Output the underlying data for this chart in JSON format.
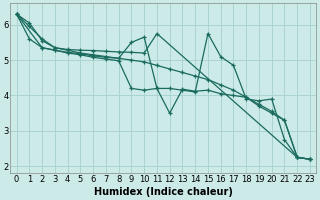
{
  "xlabel": "Humidex (Indice chaleur)",
  "xlim": [
    -0.5,
    23.5
  ],
  "ylim": [
    1.8,
    6.6
  ],
  "background_color": "#cceae8",
  "grid_color": "#aad4d0",
  "line_color": "#1a6b5e",
  "series": [
    {
      "x": [
        0,
        1,
        2,
        3,
        4,
        5,
        6,
        7,
        8,
        9,
        10,
        11,
        22,
        23
      ],
      "y": [
        6.3,
        5.95,
        5.6,
        5.35,
        5.3,
        5.28,
        5.27,
        5.25,
        5.23,
        5.22,
        5.2,
        5.75,
        2.25,
        2.2
      ]
    },
    {
      "x": [
        0,
        1,
        2,
        3,
        4,
        5,
        6,
        7,
        8,
        9,
        10,
        11,
        12,
        13,
        14,
        15,
        16,
        17,
        18,
        19,
        20,
        21,
        22,
        23
      ],
      "y": [
        6.3,
        6.05,
        5.55,
        5.35,
        5.28,
        5.2,
        5.15,
        5.1,
        5.05,
        5.0,
        4.95,
        4.85,
        4.75,
        4.65,
        4.55,
        4.45,
        4.3,
        4.15,
        3.95,
        3.75,
        3.55,
        3.3,
        2.25,
        2.2
      ]
    },
    {
      "x": [
        0,
        1,
        2,
        3,
        4,
        5,
        6,
        7,
        8,
        9,
        10,
        11,
        12,
        13,
        14,
        15,
        16,
        17,
        18,
        19,
        20,
        21,
        22,
        23
      ],
      "y": [
        6.3,
        5.6,
        5.35,
        5.28,
        5.22,
        5.18,
        5.12,
        5.08,
        5.05,
        5.5,
        5.65,
        4.2,
        4.2,
        4.15,
        4.1,
        5.75,
        5.1,
        4.85,
        3.9,
        3.85,
        3.9,
        2.75,
        2.25,
        2.2
      ]
    },
    {
      "x": [
        0,
        2,
        3,
        4,
        5,
        6,
        7,
        8,
        9,
        10,
        11,
        12,
        13,
        14,
        15,
        16,
        17,
        18,
        19,
        20,
        21,
        22,
        23
      ],
      "y": [
        6.3,
        5.35,
        5.28,
        5.2,
        5.15,
        5.08,
        5.03,
        4.98,
        4.2,
        4.15,
        4.2,
        3.5,
        4.18,
        4.12,
        4.15,
        4.05,
        4.0,
        3.95,
        3.7,
        3.5,
        3.3,
        2.25,
        2.2
      ]
    }
  ],
  "yticks": [
    2,
    3,
    4,
    5,
    6
  ],
  "xticks": [
    0,
    1,
    2,
    3,
    4,
    5,
    6,
    7,
    8,
    9,
    10,
    11,
    12,
    13,
    14,
    15,
    16,
    17,
    18,
    19,
    20,
    21,
    22,
    23
  ],
  "label_fontsize": 7,
  "tick_fontsize": 6
}
